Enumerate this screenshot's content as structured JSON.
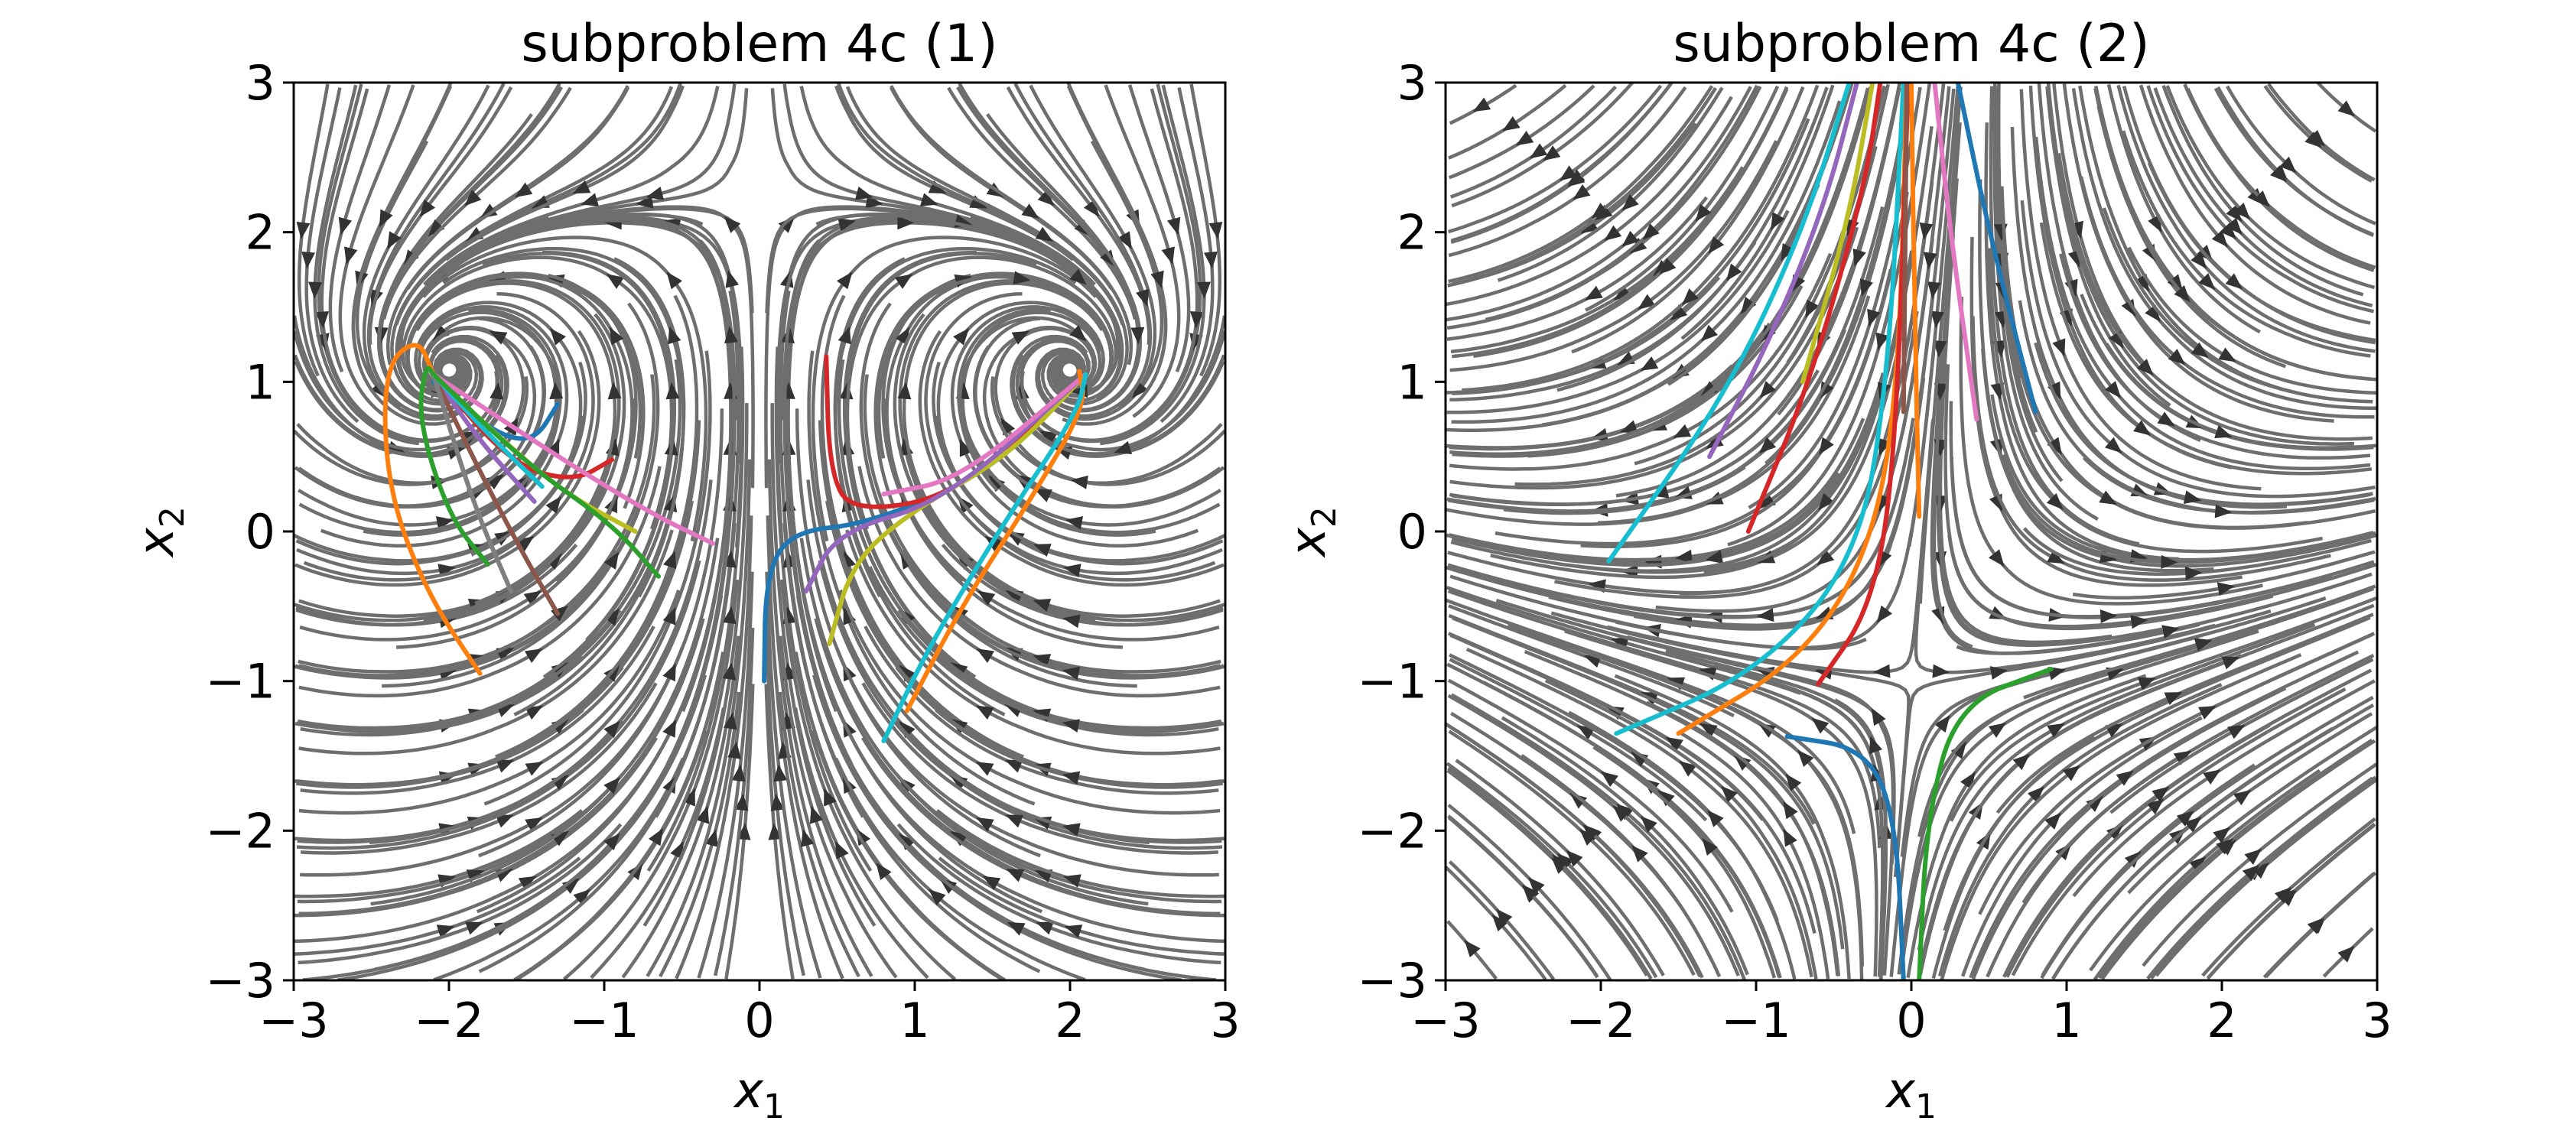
{
  "chart_data": [
    {
      "type": "streamplot",
      "title": "subproblem 4c (1)",
      "xlabel": "x",
      "xlabel_sub": "1",
      "ylabel": "x",
      "ylabel_sub": "2",
      "xlim": [
        -3,
        3
      ],
      "ylim": [
        -3,
        3
      ],
      "xticks": [
        -3,
        -2,
        -1,
        0,
        1,
        2,
        3
      ],
      "yticks": [
        -3,
        -2,
        -1,
        0,
        1,
        2,
        3
      ],
      "stream_color": "#6e6e6e",
      "equilibria": [
        [
          -2.1,
          1.05
        ],
        [
          2.1,
          1.05
        ],
        [
          0.0,
          0.0
        ]
      ],
      "trajectories": [
        {
          "color": "#1f77b4",
          "points": [
            [
              -1.3,
              0.85
            ],
            [
              -1.45,
              0.6
            ],
            [
              -1.7,
              0.65
            ],
            [
              -2.1,
              1.0
            ]
          ]
        },
        {
          "color": "#ff7f0e",
          "points": [
            [
              -1.8,
              -0.95
            ],
            [
              -2.15,
              -0.4
            ],
            [
              -2.4,
              0.3
            ],
            [
              -2.42,
              1.1
            ],
            [
              -2.2,
              1.3
            ],
            [
              -2.1,
              1.05
            ]
          ]
        },
        {
          "color": "#2ca02c",
          "points": [
            [
              -1.75,
              -0.22
            ],
            [
              -2.0,
              0.1
            ],
            [
              -2.2,
              0.75
            ],
            [
              -2.15,
              1.12
            ],
            [
              -2.1,
              1.05
            ]
          ]
        },
        {
          "color": "#d62728",
          "points": [
            [
              -0.95,
              0.48
            ],
            [
              -1.2,
              0.33
            ],
            [
              -1.6,
              0.45
            ],
            [
              -2.1,
              1.05
            ]
          ]
        },
        {
          "color": "#9467bd",
          "points": [
            [
              -1.45,
              0.2
            ],
            [
              -1.8,
              0.6
            ],
            [
              -2.1,
              1.05
            ]
          ]
        },
        {
          "color": "#8c564b",
          "points": [
            [
              -1.3,
              -0.55
            ],
            [
              -1.55,
              -0.1
            ],
            [
              -1.85,
              0.5
            ],
            [
              -2.1,
              1.05
            ]
          ]
        },
        {
          "color": "#e377c2",
          "points": [
            [
              -0.3,
              -0.08
            ],
            [
              -0.7,
              0.12
            ],
            [
              -1.3,
              0.5
            ],
            [
              -2.1,
              1.05
            ]
          ]
        },
        {
          "color": "#7f7f7f",
          "points": [
            [
              -1.6,
              -0.4
            ],
            [
              -1.85,
              0.2
            ],
            [
              -2.1,
              1.05
            ]
          ]
        },
        {
          "color": "#bcbd22",
          "points": [
            [
              -0.8,
              0.0
            ],
            [
              -1.25,
              0.25
            ],
            [
              -1.7,
              0.65
            ],
            [
              -2.1,
              1.05
            ]
          ]
        },
        {
          "color": "#17becf",
          "points": [
            [
              -1.4,
              0.3
            ],
            [
              -1.75,
              0.65
            ],
            [
              -2.1,
              1.05
            ]
          ]
        },
        {
          "color": "#2ca02c",
          "points": [
            [
              -0.65,
              -0.3
            ],
            [
              -0.95,
              0.05
            ],
            [
              -1.5,
              0.45
            ],
            [
              -2.1,
              1.05
            ]
          ]
        },
        {
          "color": "#1f77b4",
          "points": [
            [
              0.03,
              -1.0
            ],
            [
              0.04,
              -0.3
            ],
            [
              0.2,
              0.0
            ],
            [
              0.7,
              0.05
            ],
            [
              1.5,
              0.4
            ],
            [
              2.1,
              1.05
            ]
          ]
        },
        {
          "color": "#d62728",
          "points": [
            [
              0.43,
              1.17
            ],
            [
              0.45,
              0.4
            ],
            [
              0.6,
              0.12
            ],
            [
              1.3,
              0.25
            ],
            [
              2.1,
              1.05
            ]
          ]
        },
        {
          "color": "#bcbd22",
          "points": [
            [
              0.45,
              -0.75
            ],
            [
              0.6,
              -0.2
            ],
            [
              1.0,
              0.15
            ],
            [
              1.6,
              0.5
            ],
            [
              2.1,
              1.05
            ]
          ]
        },
        {
          "color": "#9467bd",
          "points": [
            [
              0.3,
              -0.4
            ],
            [
              0.5,
              0.0
            ],
            [
              1.2,
              0.2
            ],
            [
              2.1,
              1.05
            ]
          ]
        },
        {
          "color": "#e377c2",
          "points": [
            [
              0.8,
              0.25
            ],
            [
              1.3,
              0.35
            ],
            [
              2.1,
              1.05
            ]
          ]
        },
        {
          "color": "#ff7f0e",
          "points": [
            [
              0.95,
              -1.2
            ],
            [
              1.3,
              -0.5
            ],
            [
              1.8,
              0.3
            ],
            [
              2.1,
              0.85
            ],
            [
              2.06,
              1.07
            ]
          ]
        },
        {
          "color": "#17becf",
          "points": [
            [
              0.8,
              -1.4
            ],
            [
              1.1,
              -0.75
            ],
            [
              1.6,
              0.1
            ],
            [
              2.05,
              0.8
            ],
            [
              2.1,
              1.05
            ]
          ]
        }
      ]
    },
    {
      "type": "streamplot",
      "title": "subproblem 4c (2)",
      "xlabel": "x",
      "xlabel_sub": "1",
      "ylabel": "x",
      "ylabel_sub": "2",
      "xlim": [
        -3,
        3
      ],
      "ylim": [
        -3,
        3
      ],
      "xticks": [
        -3,
        -2,
        -1,
        0,
        1,
        2,
        3
      ],
      "yticks": [
        -3,
        -2,
        -1,
        0,
        1,
        2,
        3
      ],
      "stream_color": "#6e6e6e",
      "equilibria": [
        [
          0.0,
          -1.0
        ]
      ],
      "trajectories": [
        {
          "color": "#1f77b4",
          "points": [
            [
              -0.05,
              -3.0
            ],
            [
              -0.1,
              -1.9
            ],
            [
              -0.3,
              -1.45
            ],
            [
              -0.8,
              -1.37
            ]
          ]
        },
        {
          "color": "#2ca02c",
          "points": [
            [
              0.05,
              -3.0
            ],
            [
              0.1,
              -1.9
            ],
            [
              0.3,
              -1.15
            ],
            [
              0.9,
              -0.92
            ]
          ]
        },
        {
          "color": "#17becf",
          "points": [
            [
              -1.9,
              -1.35
            ],
            [
              -1.0,
              -0.95
            ],
            [
              -0.35,
              -0.2
            ],
            [
              -0.15,
              1.0
            ],
            [
              -0.05,
              3.0
            ]
          ]
        },
        {
          "color": "#ff7f0e",
          "points": [
            [
              -1.5,
              -1.35
            ],
            [
              -0.7,
              -0.85
            ],
            [
              -0.25,
              -0.1
            ],
            [
              -0.08,
              1.0
            ],
            [
              -0.03,
              3.0
            ]
          ]
        },
        {
          "color": "#d62728",
          "points": [
            [
              -0.6,
              -1.02
            ],
            [
              -0.25,
              -0.5
            ],
            [
              -0.1,
              0.5
            ],
            [
              -0.02,
              3.0
            ]
          ]
        },
        {
          "color": "#17becf",
          "points": [
            [
              -1.95,
              -0.2
            ],
            [
              -1.2,
              0.9
            ],
            [
              -0.7,
              2.0
            ],
            [
              -0.4,
              3.0
            ]
          ]
        },
        {
          "color": "#9467bd",
          "points": [
            [
              -1.3,
              0.5
            ],
            [
              -0.9,
              1.3
            ],
            [
              -0.55,
              2.2
            ],
            [
              -0.35,
              3.0
            ]
          ]
        },
        {
          "color": "#d62728",
          "points": [
            [
              -1.05,
              0.0
            ],
            [
              -0.65,
              1.0
            ],
            [
              -0.3,
              2.3
            ],
            [
              -0.2,
              3.0
            ]
          ]
        },
        {
          "color": "#bcbd22",
          "points": [
            [
              -0.7,
              1.0
            ],
            [
              -0.4,
              2.1
            ],
            [
              -0.25,
              3.0
            ]
          ]
        },
        {
          "color": "#ff7f0e",
          "points": [
            [
              0.05,
              0.1
            ],
            [
              0.02,
              1.5
            ],
            [
              0.0,
              3.0
            ]
          ]
        },
        {
          "color": "#8c564b",
          "points": [
            [
              -0.05,
              0.8
            ],
            [
              -0.03,
              3.0
            ]
          ]
        },
        {
          "color": "#e377c2",
          "points": [
            [
              0.42,
              0.75
            ],
            [
              0.25,
              2.0
            ],
            [
              0.15,
              3.0
            ]
          ]
        },
        {
          "color": "#1f77b4",
          "points": [
            [
              0.8,
              0.8
            ],
            [
              0.5,
              2.0
            ],
            [
              0.3,
              3.0
            ]
          ]
        }
      ]
    }
  ]
}
